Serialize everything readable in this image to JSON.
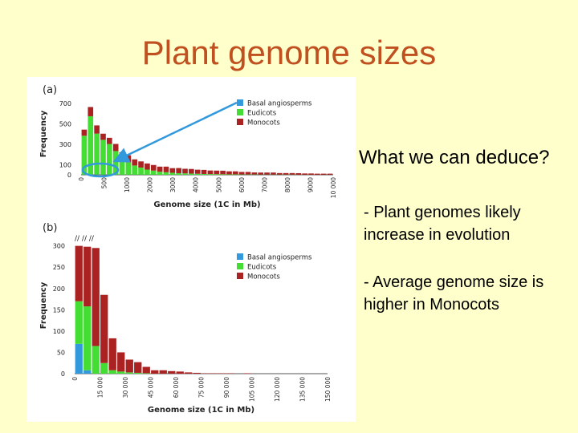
{
  "slide": {
    "title": "Plant genome sizes",
    "question": "What we can deduce?",
    "bullets": [
      "- Plant genomes likely increase in evolution",
      "- Average genome size is higher in Monocots"
    ]
  },
  "colors": {
    "background": "#ffffcc",
    "title": "#c0501f",
    "basal": "#3399dd",
    "eudicots": "#44dd33",
    "monocots": "#aa2222",
    "arrow": "#3399dd"
  },
  "legend": [
    "Basal angiosperms",
    "Eudicots",
    "Monocots"
  ],
  "chart_data": [
    {
      "type": "bar",
      "stacked": true,
      "panel_label": "(a)",
      "ylabel": "Frequency",
      "xlabel": "Genome size (1C in Mb)",
      "yticks": [
        0,
        100,
        300,
        500,
        700
      ],
      "ylim": [
        0,
        800
      ],
      "xticks": [
        "0",
        "500",
        "1000",
        "2000",
        "3000",
        "4000",
        "5000",
        "6000",
        "7000",
        "8000",
        "9000",
        "10 000"
      ],
      "xlim": [
        0,
        10000
      ],
      "bin_width": 250,
      "legend_placement": "top-right",
      "series": [
        {
          "name": "Basal angiosperms",
          "values": [
            2,
            3,
            3,
            2,
            2,
            2,
            1,
            1,
            1,
            1,
            1,
            1,
            0,
            0,
            0,
            0,
            0,
            0,
            0,
            0,
            0,
            0,
            0,
            0,
            0,
            0,
            0,
            0,
            0,
            0,
            0,
            0,
            0,
            0,
            0,
            0,
            0,
            0,
            0,
            0
          ]
        },
        {
          "name": "Eudicots",
          "values": [
            380,
            570,
            400,
            340,
            300,
            230,
            160,
            120,
            90,
            70,
            50,
            40,
            30,
            25,
            20,
            16,
            14,
            12,
            10,
            8,
            7,
            6,
            5,
            4,
            4,
            3,
            3,
            3,
            2,
            2,
            2,
            2,
            2,
            2,
            1,
            1,
            1,
            1,
            1,
            1
          ]
        },
        {
          "name": "Monocots",
          "values": [
            60,
            90,
            80,
            60,
            60,
            70,
            60,
            70,
            60,
            60,
            60,
            55,
            50,
            55,
            45,
            50,
            45,
            45,
            40,
            40,
            35,
            35,
            35,
            30,
            30,
            25,
            25,
            20,
            20,
            20,
            20,
            15,
            15,
            15,
            15,
            12,
            12,
            10,
            10,
            10
          ]
        }
      ],
      "annotation": "arrow from legend to first bins with circled 0–1000 Mb region"
    },
    {
      "type": "bar",
      "stacked": true,
      "panel_label": "(b)",
      "ylabel": "Frequency",
      "xlabel": "Genome size (1C in Mb)",
      "yticks": [
        0,
        50,
        100,
        150,
        200,
        250,
        300
      ],
      "ylim": [
        0,
        320
      ],
      "xticks": [
        "0",
        "15 000",
        "30 000",
        "45 000",
        "60 000",
        "75 000",
        "90 000",
        "105 000",
        "120 000",
        "135 000",
        "150 000"
      ],
      "xlim": [
        0,
        150000
      ],
      "bin_width": 5000,
      "break_marks": "// // //",
      "legend_placement": "top-right",
      "series": [
        {
          "name": "Basal angiosperms",
          "values": [
            70,
            8,
            0,
            0,
            0,
            0,
            0,
            0,
            0,
            0,
            0,
            0,
            0,
            0,
            0,
            0,
            0,
            0,
            0,
            0,
            0,
            0,
            0,
            0,
            0,
            0,
            0,
            0,
            0,
            0
          ]
        },
        {
          "name": "Eudicots",
          "values": [
            100,
            150,
            65,
            25,
            8,
            5,
            3,
            2,
            1,
            0,
            0,
            0,
            0,
            0,
            0,
            0,
            0,
            0,
            0,
            0,
            0,
            0,
            0,
            0,
            0,
            0,
            0,
            0,
            0,
            0
          ]
        },
        {
          "name": "Monocots",
          "values": [
            130,
            140,
            230,
            160,
            75,
            45,
            30,
            25,
            15,
            8,
            8,
            6,
            5,
            3,
            2,
            1,
            1,
            1,
            1,
            0,
            1,
            0,
            0,
            0,
            0,
            0,
            0,
            0,
            0,
            0
          ]
        }
      ]
    }
  ]
}
